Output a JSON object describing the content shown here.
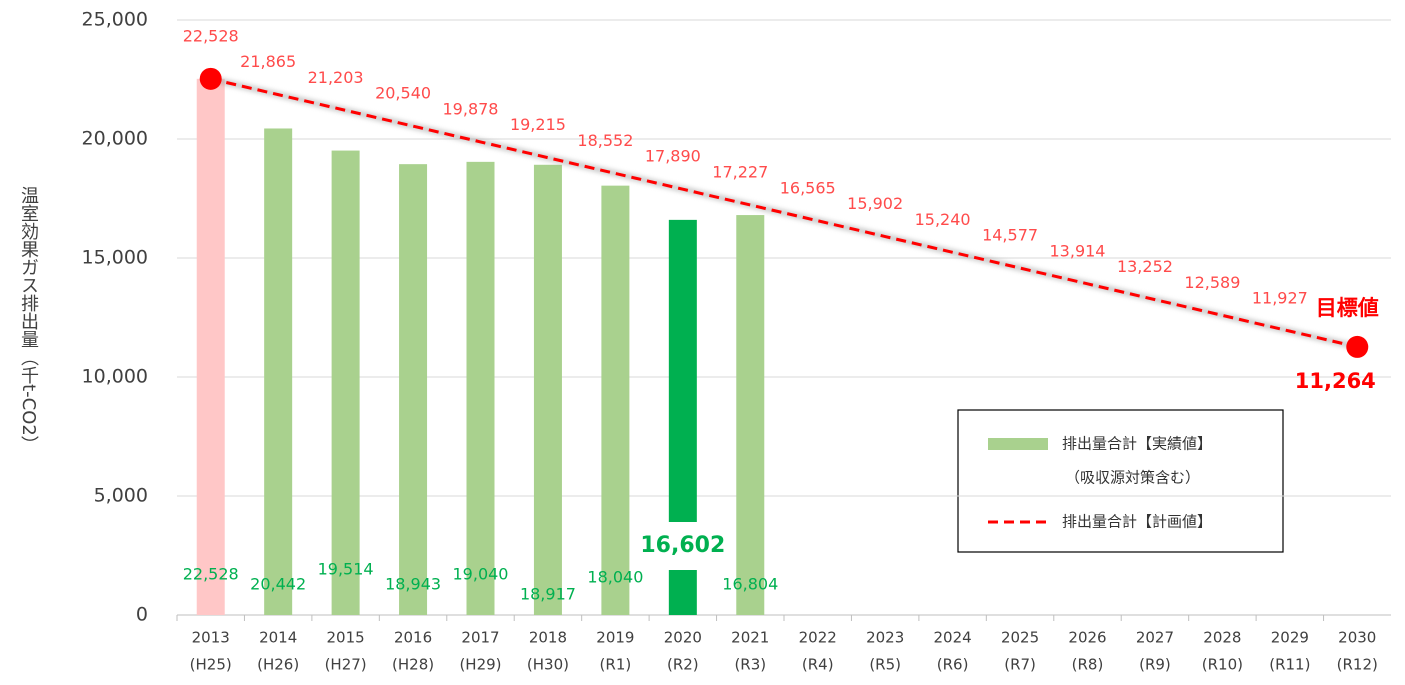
{
  "chart_data": {
    "type": "bar_line",
    "y_label": "温室効果ガス排出量（千t-CO2）",
    "categories": [
      "2013",
      "2014",
      "2015",
      "2016",
      "2017",
      "2018",
      "2019",
      "2020",
      "2021",
      "2022",
      "2023",
      "2024",
      "2025",
      "2026",
      "2027",
      "2028",
      "2029",
      "2030"
    ],
    "category_sublabels": [
      "(H25)",
      "(H26)",
      "(H27)",
      "(H28)",
      "(H29)",
      "(H30)",
      "(R1)",
      "(R2)",
      "(R3)",
      "(R4)",
      "(R5)",
      "(R6)",
      "(R7)",
      "(R8)",
      "(R9)",
      "(R10)",
      "(R11)",
      "(R12)"
    ],
    "ylim": [
      0,
      25000
    ],
    "yticks": [
      0,
      {
        "value": 5000,
        "label": "5,000"
      },
      {
        "value": 10000,
        "label": "10,000"
      },
      {
        "value": 15000,
        "label": "15,000"
      },
      {
        "value": 20000,
        "label": "20,000"
      },
      {
        "value": 25000,
        "label": "25,000"
      }
    ],
    "grid": true,
    "annotation": "目標値",
    "series": [
      {
        "name": "排出量合計【実績値】",
        "name_note": "（吸収源対策含む）",
        "type": "bar",
        "color": "#a9d18e",
        "colors": [
          "#ffc7c7",
          "#a9d18e",
          "#a9d18e",
          "#a9d18e",
          "#a9d18e",
          "#a9d18e",
          "#a9d18e",
          "#00b050",
          "#a9d18e",
          null,
          null,
          null,
          null,
          null,
          null,
          null,
          null,
          null
        ],
        "values": [
          22528,
          20442,
          19514,
          18943,
          19040,
          18917,
          18040,
          16602,
          16804,
          null,
          null,
          null,
          null,
          null,
          null,
          null,
          null,
          null
        ],
        "value_labels": [
          "22,528",
          "20,442",
          "19,514",
          "18,943",
          "19,040",
          "18,917",
          "18,040",
          "16,602",
          "16,804",
          null,
          null,
          null,
          null,
          null,
          null,
          null,
          null,
          null
        ]
      },
      {
        "name": "排出量合計【計画値】",
        "type": "line",
        "color": "#ff0000",
        "dashed": true,
        "values": [
          22528,
          21865,
          21203,
          20540,
          19878,
          19215,
          18552,
          17890,
          17227,
          16565,
          15902,
          15240,
          14577,
          13914,
          13252,
          12589,
          11927,
          11264
        ],
        "value_labels": [
          "22,528",
          "21,865",
          "21,203",
          "20,540",
          "19,878",
          "19,215",
          "18,552",
          "17,890",
          "17,227",
          "16,565",
          "15,902",
          "15,240",
          "14,577",
          "13,914",
          "13,252",
          "12,589",
          "11,927",
          "11,264"
        ]
      }
    ]
  }
}
